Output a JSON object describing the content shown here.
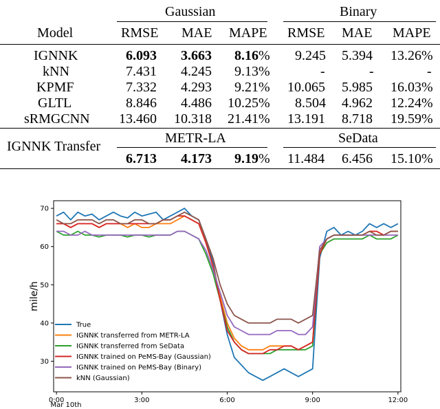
{
  "table": {
    "model_header": "Model",
    "group_headers": [
      "Gaussian",
      "Binary"
    ],
    "metric_headers": [
      "RMSE",
      "MAE",
      "MAPE",
      "RMSE",
      "MAE",
      "MAPE"
    ],
    "rows": [
      {
        "model": "IGNNK",
        "values": [
          "6.093",
          "3.663",
          "8.16",
          "9.245",
          "5.394",
          "13.26%"
        ],
        "bold": [
          true,
          true,
          true,
          false,
          false,
          false
        ]
      },
      {
        "model": "kNN",
        "values": [
          "7.431",
          "4.245",
          "9.13%",
          "-",
          "-",
          "-"
        ],
        "bold": [
          false,
          false,
          false,
          false,
          false,
          false
        ]
      },
      {
        "model": "KPMF",
        "values": [
          "7.332",
          "4.293",
          "9.21%",
          "10.065",
          "5.985",
          "16.03%"
        ],
        "bold": [
          false,
          false,
          false,
          false,
          false,
          false
        ]
      },
      {
        "model": "GLTL",
        "values": [
          "8.846",
          "4.486",
          "10.25%",
          "8.504",
          "4.962",
          "12.24%"
        ],
        "bold": [
          false,
          false,
          false,
          false,
          false,
          false
        ]
      },
      {
        "model": "sRMGCNN",
        "values": [
          "13.460",
          "10.318",
          "21.41%",
          "13.191",
          "8.718",
          "19.59%"
        ],
        "bold": [
          false,
          false,
          false,
          false,
          false,
          false
        ]
      }
    ],
    "transfer": {
      "label": "IGNNK Transfer",
      "group_headers": [
        "METR-LA",
        "SeData"
      ],
      "values": [
        "6.713",
        "4.173",
        "9.19",
        "11.484",
        "6.456",
        "15.10%"
      ],
      "bold": [
        true,
        true,
        true,
        false,
        false,
        false
      ]
    },
    "percent_suffix": "%"
  },
  "chart_data": {
    "type": "line",
    "ylabel": "mile/h",
    "xlabel": "",
    "x_ticks": [
      0,
      3,
      6,
      9,
      12
    ],
    "x_tick_labels": [
      "0:00",
      "3:00",
      "6:00",
      "9:00",
      "12:00"
    ],
    "x_sublabel": "Mar 10th",
    "xlim": [
      -0.1,
      12.1
    ],
    "y_ticks": [
      30,
      40,
      50,
      60,
      70
    ],
    "y_tick_labels": [
      "30",
      "40",
      "50",
      "60",
      "70"
    ],
    "ylim": [
      22,
      72
    ],
    "legend_position": "lower-left",
    "x": [
      0,
      0.25,
      0.5,
      0.75,
      1,
      1.25,
      1.5,
      1.75,
      2,
      2.25,
      2.5,
      2.75,
      3,
      3.25,
      3.5,
      3.75,
      4,
      4.25,
      4.5,
      4.75,
      5,
      5.25,
      5.5,
      5.75,
      6,
      6.25,
      6.5,
      6.75,
      7,
      7.25,
      7.5,
      7.75,
      8,
      8.25,
      8.5,
      8.75,
      9,
      9.25,
      9.5,
      9.75,
      10,
      10.25,
      10.5,
      10.75,
      11,
      11.25,
      11.5,
      11.75,
      12
    ],
    "series": [
      {
        "name": "True",
        "color": "#1f77b4",
        "values": [
          68,
          69,
          67,
          69,
          68,
          68.5,
          67,
          68,
          69,
          68,
          67.5,
          69,
          68,
          68.5,
          69,
          67,
          68,
          69,
          70,
          68,
          67,
          62,
          56,
          46,
          37,
          31,
          29,
          27,
          26,
          25,
          26,
          27,
          28,
          27,
          26,
          27,
          28,
          57,
          64,
          65,
          63,
          64,
          63,
          64,
          66,
          65,
          66,
          65,
          66
        ]
      },
      {
        "name": "IGNNK transferred from METR-LA",
        "color": "#ff7f0e",
        "values": [
          66,
          66,
          65,
          66,
          66,
          66,
          65,
          66,
          66,
          66,
          65,
          66,
          65,
          65,
          66,
          66,
          66,
          67,
          68,
          67,
          66,
          61,
          55,
          47,
          40,
          36,
          34,
          33,
          33,
          33,
          34,
          34,
          34,
          34,
          33,
          34,
          35,
          59,
          62,
          63,
          63,
          63,
          63,
          63,
          64,
          64,
          63,
          64,
          64
        ]
      },
      {
        "name": "IGNNK transferred from SeData",
        "color": "#2ca02c",
        "values": [
          64,
          63,
          63,
          64,
          63,
          63,
          62.5,
          63,
          63,
          63,
          62.5,
          63,
          63,
          62.5,
          63,
          63,
          63,
          64,
          64,
          63,
          62,
          58,
          53,
          46,
          39,
          35,
          33,
          32,
          32,
          32,
          32,
          33,
          33,
          33,
          33,
          33,
          34,
          58,
          61,
          62,
          62,
          62,
          62,
          62,
          63,
          62,
          62,
          62,
          63
        ]
      },
      {
        "name": "IGNNK trained on PeMS-Bay (Gaussian)",
        "color": "#d62728",
        "values": [
          66,
          66,
          65,
          66,
          66,
          66,
          65,
          66,
          66,
          66,
          66,
          66,
          66,
          66,
          66,
          67,
          67,
          68,
          68,
          67,
          66,
          61,
          55,
          46,
          38,
          35,
          33,
          32,
          32,
          32,
          33,
          33,
          34,
          34,
          33,
          34,
          35,
          58,
          62,
          63,
          63,
          63,
          63,
          63,
          64,
          64,
          63,
          64,
          64
        ]
      },
      {
        "name": "IGNNK trained on PeMS-Bay (Binary)",
        "color": "#9467bd",
        "values": [
          64,
          64,
          63,
          63,
          64,
          63,
          63,
          63,
          63,
          63,
          63,
          63,
          63,
          63,
          63,
          63,
          63,
          64,
          64,
          63,
          62,
          59,
          54,
          48,
          42,
          39,
          38,
          37,
          37,
          37,
          37,
          38,
          38,
          38,
          37,
          37,
          39,
          60,
          62,
          63,
          63,
          63,
          63,
          63,
          63,
          63,
          63,
          63,
          63
        ]
      },
      {
        "name": "kNN (Gaussian)",
        "color": "#8c564b",
        "values": [
          67,
          66,
          66,
          67,
          67,
          67,
          66,
          67,
          67,
          66,
          66,
          67,
          67,
          66,
          66,
          67,
          67,
          68,
          69,
          68,
          67,
          62,
          57,
          50,
          45,
          42,
          41,
          40,
          40,
          40,
          40,
          41,
          41,
          41,
          40,
          41,
          42,
          59,
          62,
          63,
          63,
          63,
          63,
          63,
          64,
          63,
          63,
          64,
          64
        ]
      }
    ]
  }
}
